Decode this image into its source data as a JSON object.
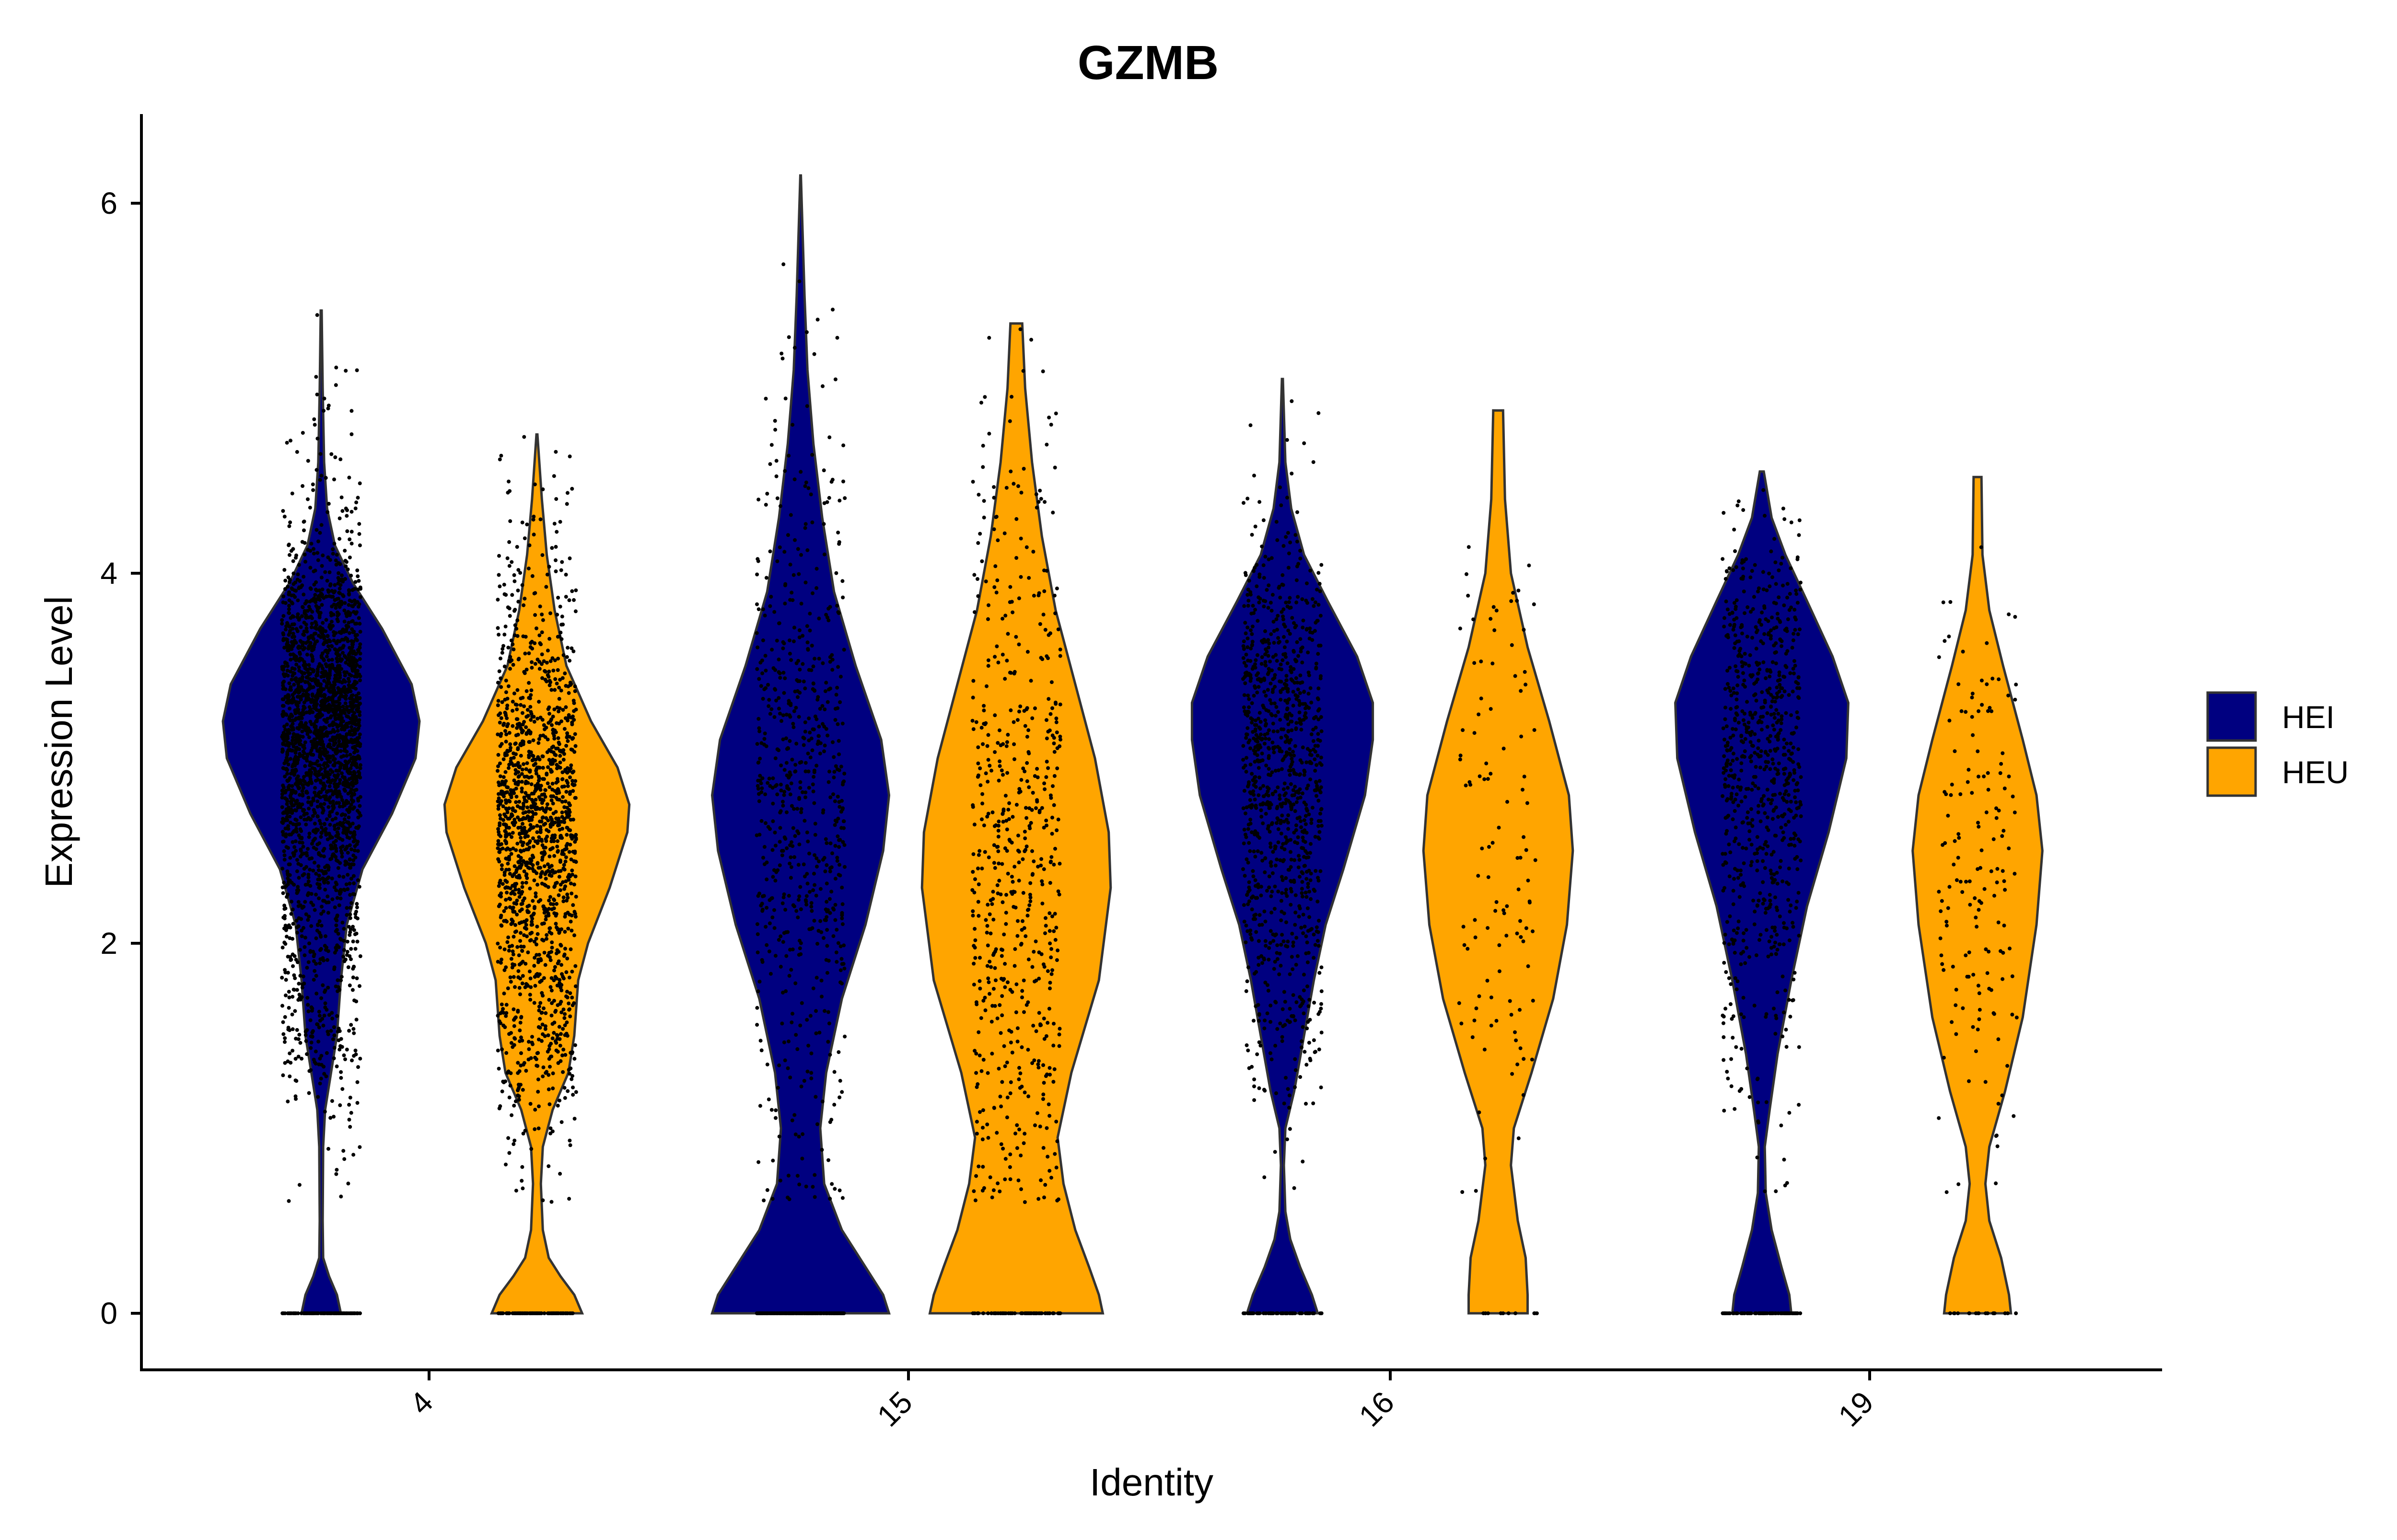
{
  "chart_data": {
    "type": "violin",
    "title": "GZMB",
    "xlabel": "Identity",
    "ylabel": "Expression Level",
    "categories": [
      "4",
      "15",
      "16",
      "19"
    ],
    "yticks": [
      0,
      2,
      4,
      6
    ],
    "ylim": [
      -0.3,
      6.5
    ],
    "grid": false,
    "legend": {
      "position": "right",
      "entries": [
        {
          "name": "HEI",
          "color": "#000080"
        },
        {
          "name": "HEU",
          "color": "#FFA500"
        }
      ]
    },
    "series": [
      {
        "name": "HEI",
        "color": "#000080"
      },
      {
        "name": "HEU",
        "color": "#FFA500"
      }
    ],
    "violins": [
      {
        "category": "4",
        "group": "HEI",
        "max": 5.42,
        "zero_fraction": 0.04,
        "density": [
          [
            0,
            0.2
          ],
          [
            0.1,
            0.16
          ],
          [
            0.2,
            0.08
          ],
          [
            0.3,
            0.02
          ],
          [
            0.5,
            0.015
          ],
          [
            0.9,
            0.02
          ],
          [
            1.1,
            0.04
          ],
          [
            1.3,
            0.1
          ],
          [
            1.5,
            0.16
          ],
          [
            1.8,
            0.2
          ],
          [
            2.1,
            0.26
          ],
          [
            2.4,
            0.42
          ],
          [
            2.7,
            0.72
          ],
          [
            3.0,
            0.96
          ],
          [
            3.2,
            1.0
          ],
          [
            3.4,
            0.92
          ],
          [
            3.7,
            0.62
          ],
          [
            3.95,
            0.32
          ],
          [
            4.15,
            0.14
          ],
          [
            4.35,
            0.06
          ],
          [
            4.6,
            0.03
          ],
          [
            5.0,
            0.015
          ],
          [
            5.42,
            0.005
          ]
        ],
        "points": {
          "n": 2600,
          "xjitter": 0.4
        }
      },
      {
        "category": "4",
        "group": "HEU",
        "max": 4.75,
        "zero_fraction": 0.06,
        "density": [
          [
            0,
            0.46
          ],
          [
            0.1,
            0.38
          ],
          [
            0.2,
            0.24
          ],
          [
            0.3,
            0.12
          ],
          [
            0.45,
            0.06
          ],
          [
            0.7,
            0.04
          ],
          [
            0.9,
            0.06
          ],
          [
            1.1,
            0.16
          ],
          [
            1.3,
            0.32
          ],
          [
            1.5,
            0.38
          ],
          [
            1.8,
            0.42
          ],
          [
            2.0,
            0.52
          ],
          [
            2.3,
            0.74
          ],
          [
            2.6,
            0.92
          ],
          [
            2.75,
            0.94
          ],
          [
            2.95,
            0.82
          ],
          [
            3.2,
            0.55
          ],
          [
            3.5,
            0.3
          ],
          [
            3.8,
            0.18
          ],
          [
            4.1,
            0.1
          ],
          [
            4.4,
            0.05
          ],
          [
            4.75,
            0.005
          ]
        ],
        "points": {
          "n": 1600,
          "xjitter": 0.4
        }
      },
      {
        "category": "15",
        "group": "HEI",
        "max": 6.15,
        "zero_fraction": 0.25,
        "density": [
          [
            0,
            0.9
          ],
          [
            0.1,
            0.84
          ],
          [
            0.25,
            0.66
          ],
          [
            0.45,
            0.42
          ],
          [
            0.7,
            0.24
          ],
          [
            1.0,
            0.2
          ],
          [
            1.3,
            0.26
          ],
          [
            1.7,
            0.42
          ],
          [
            2.1,
            0.66
          ],
          [
            2.5,
            0.84
          ],
          [
            2.8,
            0.9
          ],
          [
            3.1,
            0.82
          ],
          [
            3.5,
            0.56
          ],
          [
            3.9,
            0.34
          ],
          [
            4.3,
            0.22
          ],
          [
            4.7,
            0.13
          ],
          [
            5.1,
            0.07
          ],
          [
            5.5,
            0.04
          ],
          [
            5.85,
            0.02
          ],
          [
            6.15,
            0.003
          ]
        ],
        "points": {
          "n": 900,
          "xjitter": 0.45
        }
      },
      {
        "category": "15",
        "group": "HEU",
        "max": 5.35,
        "zero_fraction": 0.1,
        "density": [
          [
            0,
            0.88
          ],
          [
            0.1,
            0.84
          ],
          [
            0.25,
            0.74
          ],
          [
            0.45,
            0.6
          ],
          [
            0.7,
            0.48
          ],
          [
            0.95,
            0.42
          ],
          [
            1.3,
            0.56
          ],
          [
            1.8,
            0.84
          ],
          [
            2.3,
            0.96
          ],
          [
            2.6,
            0.94
          ],
          [
            3.0,
            0.8
          ],
          [
            3.4,
            0.6
          ],
          [
            3.8,
            0.4
          ],
          [
            4.2,
            0.26
          ],
          [
            4.6,
            0.16
          ],
          [
            5.0,
            0.09
          ],
          [
            5.35,
            0.06
          ]
        ],
        "points": {
          "n": 650,
          "xjitter": 0.45
        }
      },
      {
        "category": "16",
        "group": "HEI",
        "max": 5.05,
        "zero_fraction": 0.05,
        "density": [
          [
            0,
            0.36
          ],
          [
            0.1,
            0.3
          ],
          [
            0.25,
            0.18
          ],
          [
            0.4,
            0.08
          ],
          [
            0.55,
            0.03
          ],
          [
            0.8,
            0.015
          ],
          [
            1.0,
            0.03
          ],
          [
            1.2,
            0.12
          ],
          [
            1.5,
            0.22
          ],
          [
            1.8,
            0.32
          ],
          [
            2.1,
            0.44
          ],
          [
            2.4,
            0.62
          ],
          [
            2.8,
            0.84
          ],
          [
            3.1,
            0.92
          ],
          [
            3.3,
            0.92
          ],
          [
            3.55,
            0.76
          ],
          [
            3.85,
            0.46
          ],
          [
            4.1,
            0.22
          ],
          [
            4.35,
            0.09
          ],
          [
            4.6,
            0.03
          ],
          [
            5.05,
            0.005
          ]
        ],
        "points": {
          "n": 1100,
          "xjitter": 0.4
        }
      },
      {
        "category": "16",
        "group": "HEU",
        "max": 4.88,
        "zero_fraction": 0.08,
        "density": [
          [
            0,
            0.3
          ],
          [
            0.1,
            0.3
          ],
          [
            0.3,
            0.28
          ],
          [
            0.5,
            0.2
          ],
          [
            0.8,
            0.13
          ],
          [
            1.0,
            0.16
          ],
          [
            1.3,
            0.34
          ],
          [
            1.7,
            0.56
          ],
          [
            2.1,
            0.7
          ],
          [
            2.5,
            0.76
          ],
          [
            2.8,
            0.72
          ],
          [
            3.2,
            0.52
          ],
          [
            3.6,
            0.3
          ],
          [
            4.0,
            0.13
          ],
          [
            4.4,
            0.07
          ],
          [
            4.88,
            0.05
          ]
        ],
        "points": {
          "n": 120,
          "xjitter": 0.4
        }
      },
      {
        "category": "19",
        "group": "HEI",
        "max": 4.55,
        "zero_fraction": 0.1,
        "density": [
          [
            0,
            0.3
          ],
          [
            0.1,
            0.28
          ],
          [
            0.25,
            0.2
          ],
          [
            0.45,
            0.1
          ],
          [
            0.65,
            0.04
          ],
          [
            0.9,
            0.03
          ],
          [
            1.1,
            0.08
          ],
          [
            1.4,
            0.16
          ],
          [
            1.8,
            0.3
          ],
          [
            2.2,
            0.46
          ],
          [
            2.6,
            0.68
          ],
          [
            3.0,
            0.86
          ],
          [
            3.3,
            0.88
          ],
          [
            3.55,
            0.72
          ],
          [
            3.85,
            0.46
          ],
          [
            4.1,
            0.24
          ],
          [
            4.3,
            0.1
          ],
          [
            4.55,
            0.02
          ]
        ],
        "points": {
          "n": 850,
          "xjitter": 0.4
        }
      },
      {
        "category": "19",
        "group": "HEU",
        "max": 4.52,
        "zero_fraction": 0.1,
        "density": [
          [
            0,
            0.34
          ],
          [
            0.1,
            0.32
          ],
          [
            0.3,
            0.24
          ],
          [
            0.5,
            0.12
          ],
          [
            0.7,
            0.08
          ],
          [
            0.9,
            0.12
          ],
          [
            1.2,
            0.28
          ],
          [
            1.6,
            0.46
          ],
          [
            2.1,
            0.6
          ],
          [
            2.5,
            0.66
          ],
          [
            2.8,
            0.6
          ],
          [
            3.1,
            0.46
          ],
          [
            3.5,
            0.26
          ],
          [
            3.8,
            0.12
          ],
          [
            4.1,
            0.05
          ],
          [
            4.52,
            0.04
          ]
        ],
        "points": {
          "n": 170,
          "xjitter": 0.4
        }
      }
    ]
  }
}
